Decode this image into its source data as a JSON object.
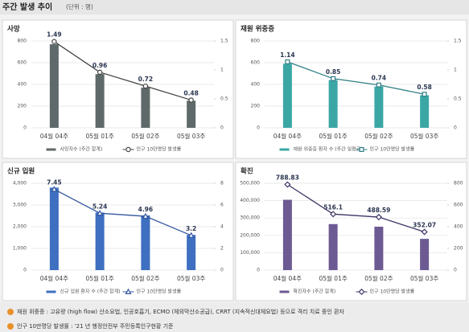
{
  "header": {
    "title": "주간 발생 추이",
    "unit": "(단위 : 명)"
  },
  "chart_data": [
    {
      "type": "bar_line",
      "title": "사망",
      "categories": [
        "04월 04주",
        "05월 01주",
        "05월 02주",
        "05월 03주"
      ],
      "series": [
        {
          "name": "사망자수 (주간 합계)",
          "color": "#5f6969",
          "kind": "bar",
          "values": [
            770,
            495,
            370,
            250
          ]
        },
        {
          "name": "인구 10만명당 발생률",
          "color": "#444444",
          "kind": "line",
          "marker": "circle",
          "axis": "y2",
          "values": [
            1.49,
            0.96,
            0.72,
            0.48
          ]
        }
      ],
      "ylim": [
        0,
        800
      ],
      "yticks": [
        0,
        200,
        400,
        600,
        800
      ],
      "y2lim": [
        0,
        1.5
      ],
      "y2ticks": [
        0,
        0.5,
        1,
        1.5
      ],
      "grid": true
    },
    {
      "type": "bar_line",
      "title": "재원 위중증",
      "categories": [
        "04월 04주",
        "05월 01주",
        "05월 02주",
        "05월 03주"
      ],
      "series": [
        {
          "name": "재원 위중증 환자 수 (주간 일평균)",
          "color": "#3aa7a5",
          "kind": "bar",
          "values": [
            590,
            440,
            380,
            300
          ]
        },
        {
          "name": "인구 10만명당 발생률",
          "color": "#2f7f86",
          "kind": "line",
          "marker": "square",
          "axis": "y2",
          "values": [
            1.14,
            0.85,
            0.74,
            0.58
          ]
        }
      ],
      "ylim": [
        0,
        800
      ],
      "yticks": [
        0,
        200,
        400,
        600,
        800
      ],
      "y2lim": [
        0,
        1.5
      ],
      "y2ticks": [
        0,
        0.5,
        1,
        1.5
      ],
      "grid": true
    },
    {
      "type": "bar_line",
      "title": "신규 입원",
      "categories": [
        "04월 04주",
        "05월 01주",
        "05월 02주",
        "05월 03주"
      ],
      "series": [
        {
          "name": "신규 입원 환자 수 (주간 합계)",
          "color": "#3e6fc0",
          "kind": "bar",
          "values": [
            3800,
            2650,
            2520,
            1620
          ]
        },
        {
          "name": "인구 10만명당 발생률",
          "color": "#3457a0",
          "kind": "line",
          "marker": "triangle",
          "axis": "y2",
          "values": [
            7.45,
            5.24,
            4.96,
            3.2
          ]
        }
      ],
      "ylim": [
        0,
        4000
      ],
      "yticks": [
        0,
        {
          "value": 1000,
          "label": "1,000"
        },
        {
          "value": 2000,
          "label": "2,000"
        },
        {
          "value": 3000,
          "label": "3,000"
        },
        {
          "value": 4000,
          "label": "4,000"
        }
      ],
      "y2lim": [
        0,
        8
      ],
      "y2ticks": [
        0,
        2,
        4,
        6,
        8
      ],
      "grid": true
    },
    {
      "type": "bar_line",
      "title": "확진",
      "categories": [
        "04월 04주",
        "05월 01주",
        "05월 02주",
        "05월 03주"
      ],
      "series": [
        {
          "name": "확진자수 (주간 합계)",
          "color": "#6c5a93",
          "kind": "bar",
          "values": [
            405000,
            265000,
            250000,
            180000
          ]
        },
        {
          "name": "인구 10만명당 발생률",
          "color": "#3d3566",
          "kind": "line",
          "marker": "diamond",
          "axis": "y2",
          "values": [
            788.83,
            516.1,
            488.59,
            352.07
          ]
        }
      ],
      "ylim": [
        0,
        500000
      ],
      "yticks": [
        0,
        {
          "value": 100000,
          "label": "100,000"
        },
        {
          "value": 200000,
          "label": "200,000"
        },
        {
          "value": 300000,
          "label": "300,000"
        },
        {
          "value": 400000,
          "label": "400,000"
        },
        {
          "value": 500000,
          "label": "500,000"
        }
      ],
      "y2lim": [
        0,
        800
      ],
      "y2ticks": [
        0,
        200,
        400,
        600,
        800
      ],
      "grid": true
    }
  ],
  "notes": [
    "재원 위중증 : 고유량 (high flow) 산소요법, 인공호흡기, ECMO (체외막산소공급), CRRT (지속적신대체요법) 등으로 격리 치료 중인 환자",
    "인구 10만명당 발생률 : '21 년 행정안전부 주민등록인구현황 기준"
  ]
}
